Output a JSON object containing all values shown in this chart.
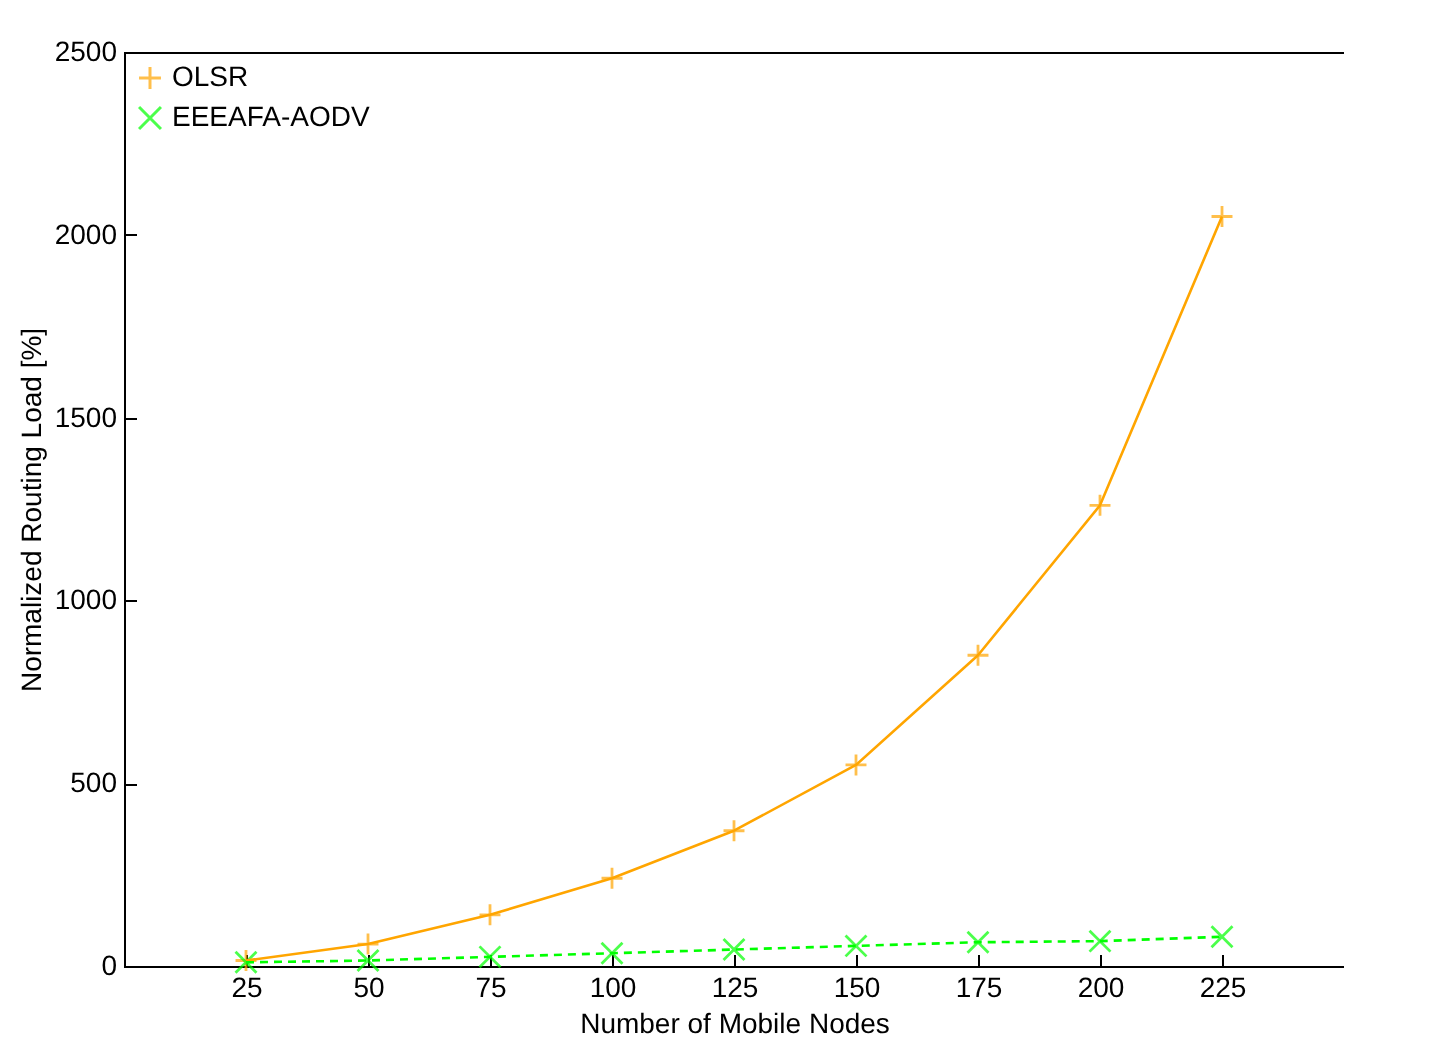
{
  "chart_data": {
    "type": "line",
    "xlabel": "Number of Mobile Nodes",
    "ylabel": "Normalized Routing Load [%]",
    "x": [
      25,
      50,
      75,
      100,
      125,
      150,
      175,
      200,
      225
    ],
    "series": [
      {
        "name": "OLSR",
        "color": "#ffa500",
        "marker": "cross",
        "line_style": "solid",
        "values": [
          15,
          60,
          140,
          240,
          370,
          550,
          850,
          1260,
          2050
        ]
      },
      {
        "name": "EEEAFA-AODV",
        "color": "#00ff00",
        "marker": "x",
        "line_style": "dashed",
        "values": [
          10,
          15,
          25,
          35,
          45,
          55,
          65,
          68,
          80
        ]
      }
    ],
    "xlim": [
      0,
      250
    ],
    "xticks": [
      25,
      50,
      75,
      100,
      125,
      150,
      175,
      200,
      225
    ],
    "ylim": [
      0,
      2500
    ],
    "yticks": [
      0,
      500,
      1000,
      1500,
      2000,
      2500
    ],
    "grid": false,
    "legend": "top left"
  }
}
